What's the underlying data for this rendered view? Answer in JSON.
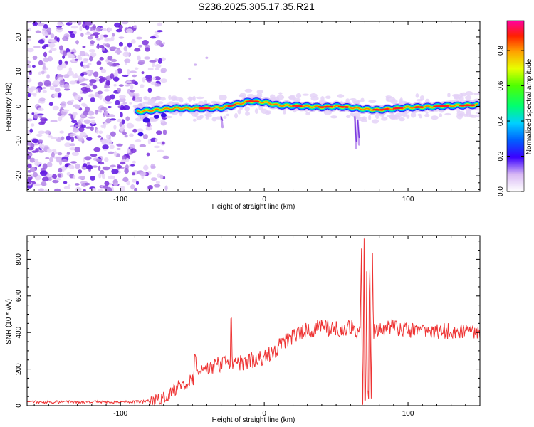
{
  "title": "S236.2025.305.17.35.R21",
  "colors": {
    "line": "#ee3333",
    "frame": "#000000",
    "ridge_core": "#ff2020",
    "noise": "#8a2be2"
  },
  "chart_data": [
    {
      "type": "heatmap",
      "name": "spectrogram",
      "xlabel": "Height of straight line (km)",
      "ylabel": "Frequency (Hz)",
      "xlim": [
        -165,
        150
      ],
      "ylim": [
        -24.5,
        24.5
      ],
      "x_ticks": [
        -100,
        0,
        100
      ],
      "x_tick_labels": [
        "-100",
        "0",
        "100"
      ],
      "y_ticks": [
        -20,
        -10,
        0,
        10,
        20
      ],
      "y_tick_labels": [
        "-20",
        "-10",
        "0",
        "10",
        "20"
      ],
      "noise_region_x": [
        -165,
        -68
      ],
      "ridge": {
        "description_values_km_hz": "doppler frequency ridge center vs height",
        "x": [
          -88,
          -80,
          -70,
          -60,
          -50,
          -40,
          -30,
          -20,
          -10,
          0,
          10,
          20,
          30,
          40,
          50,
          60,
          70,
          80,
          90,
          100,
          110,
          120,
          130,
          140,
          148
        ],
        "y": [
          -1.5,
          -1.2,
          -0.8,
          -0.5,
          -0.6,
          -0.5,
          -0.4,
          0.5,
          1.5,
          1.2,
          0.3,
          0.2,
          0.0,
          -0.2,
          0.0,
          -0.3,
          -0.8,
          -1.0,
          -0.6,
          -0.3,
          -0.2,
          0.0,
          0.2,
          0.3,
          0.4
        ]
      }
    },
    {
      "type": "line",
      "name": "snr",
      "xlabel": "Height of straight line (km)",
      "ylabel": "SNR (10 * v/v)",
      "xlim": [
        -165,
        150
      ],
      "ylim": [
        0,
        930
      ],
      "x_ticks": [
        -100,
        0,
        100
      ],
      "x_tick_labels": [
        "-100",
        "0",
        "100"
      ],
      "y_ticks": [
        0,
        200,
        400,
        600,
        800
      ],
      "y_tick_labels": [
        "0",
        "200",
        "400",
        "600",
        "800"
      ],
      "envelope": {
        "x": [
          -165,
          -90,
          -80,
          -70,
          -60,
          -50,
          -40,
          -30,
          -20,
          -10,
          0,
          10,
          20,
          30,
          40,
          50,
          60,
          65,
          70,
          75,
          80,
          90,
          100,
          120,
          150
        ],
        "y": [
          20,
          20,
          25,
          40,
          100,
          150,
          200,
          230,
          230,
          240,
          270,
          320,
          380,
          410,
          430,
          420,
          430,
          410,
          420,
          400,
          420,
          430,
          410,
          405,
          410
        ]
      },
      "spikes": [
        {
          "x": -48,
          "y": 285
        },
        {
          "x": -23,
          "y": 480
        },
        {
          "x": 69,
          "y": 920
        },
        {
          "x": 71,
          "y": 900
        },
        {
          "x": 73,
          "y": 860
        }
      ],
      "dips": [
        {
          "x": 70,
          "y": 30
        },
        {
          "x": 72,
          "y": 80
        }
      ]
    }
  ],
  "colorbar": {
    "label": "Normalized spectral amplitude",
    "range": [
      0.0,
      0.97
    ],
    "ticks": [
      0.0,
      0.2,
      0.4,
      0.6,
      0.8
    ],
    "tick_labels": [
      "0.0",
      "0.2",
      "0.4",
      "0.6",
      "0.8"
    ]
  }
}
